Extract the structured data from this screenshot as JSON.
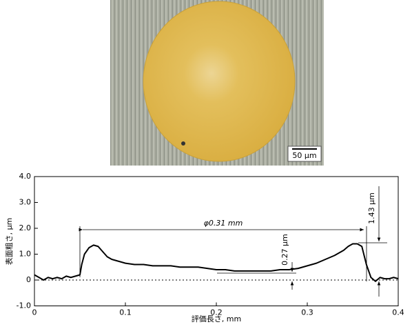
{
  "image": {
    "scale_bar": "50 μm"
  },
  "chart_data": {
    "type": "line",
    "ylabel": "表面粗さ, μm",
    "xlabel": "評価長さ, mm",
    "annotations": [
      "φ0.31 mm",
      "0.27 μm",
      "1.43 μm"
    ],
    "series": [
      {
        "color": "#000000",
        "x": [
          0,
          0.005,
          0.01,
          0.015,
          0.02,
          0.025,
          0.03,
          0.035,
          0.04,
          0.045,
          0.05,
          0.052,
          0.055,
          0.06,
          0.065,
          0.07,
          0.075,
          0.08,
          0.085,
          0.09,
          0.1,
          0.11,
          0.12,
          0.13,
          0.14,
          0.15,
          0.16,
          0.17,
          0.18,
          0.19,
          0.2,
          0.21,
          0.22,
          0.23,
          0.24,
          0.25,
          0.26,
          0.27,
          0.28,
          0.29,
          0.3,
          0.31,
          0.32,
          0.33,
          0.34,
          0.345,
          0.35,
          0.355,
          0.36,
          0.365,
          0.37,
          0.375,
          0.38,
          0.385,
          0.39,
          0.395,
          0.4
        ],
        "values": [
          0.2,
          0.1,
          0.0,
          0.1,
          0.05,
          0.1,
          0.05,
          0.15,
          0.1,
          0.15,
          0.2,
          0.6,
          1.0,
          1.25,
          1.35,
          1.3,
          1.1,
          0.9,
          0.8,
          0.75,
          0.65,
          0.6,
          0.6,
          0.55,
          0.55,
          0.55,
          0.5,
          0.5,
          0.5,
          0.45,
          0.4,
          0.4,
          0.35,
          0.35,
          0.35,
          0.35,
          0.35,
          0.4,
          0.4,
          0.45,
          0.55,
          0.65,
          0.8,
          0.95,
          1.15,
          1.3,
          1.4,
          1.4,
          1.3,
          0.6,
          0.1,
          -0.05,
          0.1,
          0.05,
          0.05,
          0.1,
          0.05
        ]
      }
    ],
    "xlim": [
      0,
      0.4
    ],
    "ylim": [
      -1.0,
      4.0
    ],
    "xticks": [
      0,
      0.1,
      0.2,
      0.3,
      0.4
    ],
    "yticks": [
      {
        "value": -1,
        "label": "-1.0"
      },
      0,
      {
        "value": 1,
        "label": "1.0"
      },
      {
        "value": 2,
        "label": "2.0"
      },
      {
        "value": 3,
        "label": "3.0"
      },
      {
        "value": 4,
        "label": "4.0"
      }
    ]
  }
}
